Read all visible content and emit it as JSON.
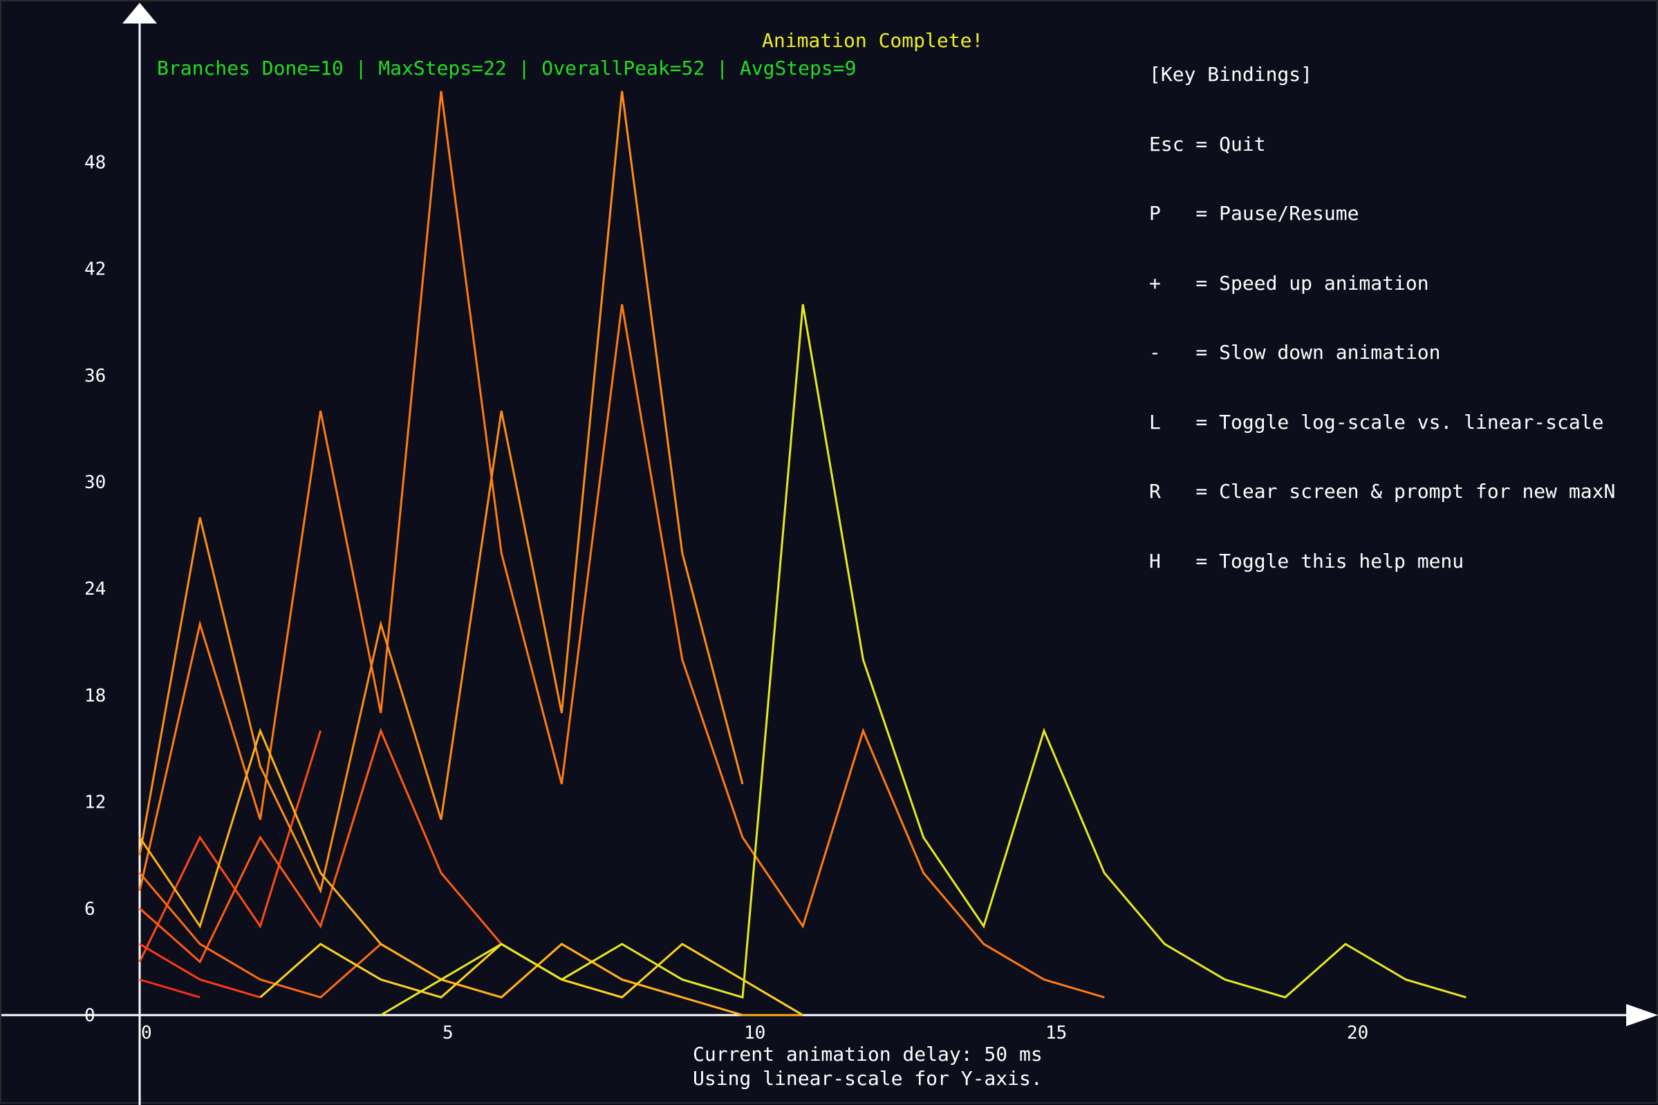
{
  "help": {
    "lines": [
      "[Key Bindings]",
      "Esc = Quit",
      "P   = Pause/Resume",
      "+   = Speed up animation",
      "-   = Slow down animation",
      "L   = Toggle log-scale vs. linear-scale",
      "R   = Clear screen & prompt for new maxN",
      "H   = Toggle this help menu"
    ]
  },
  "status": {
    "complete": "Animation Complete!",
    "summary": "Branches Done=10 | MaxSteps=22 | OverallPeak=52 | AvgSteps=9"
  },
  "footer": {
    "delay": "Current animation delay: 50 ms",
    "scale": "Using linear-scale for Y-axis."
  },
  "chart_data": {
    "type": "line",
    "xlabel": "",
    "ylabel": "",
    "xlim": [
      0,
      25
    ],
    "ylim": [
      0,
      54
    ],
    "x_ticks": [
      0,
      5,
      10,
      15,
      20
    ],
    "y_ticks": [
      0,
      6,
      12,
      18,
      24,
      30,
      36,
      42,
      48
    ],
    "grid": false,
    "series": [
      {
        "x": [
          0,
          1
        ],
        "y": [
          2,
          1
        ],
        "color": "#ff2a1a"
      },
      {
        "x": [
          0,
          1,
          2
        ],
        "y": [
          4,
          2,
          1
        ],
        "color": "#ff3a14"
      },
      {
        "x": [
          0,
          1,
          2,
          3
        ],
        "y": [
          3,
          10,
          5,
          16
        ],
        "color": "#ff4a12"
      },
      {
        "x": [
          0,
          1,
          2,
          3,
          4,
          5,
          6,
          7,
          8
        ],
        "y": [
          6,
          3,
          10,
          5,
          16,
          8,
          4,
          2,
          1
        ],
        "color": "#ff5a10"
      },
      {
        "x": [
          0,
          1,
          2,
          3,
          4,
          5,
          6,
          7,
          8,
          9
        ],
        "y": [
          8,
          4,
          2,
          1,
          4,
          2,
          1,
          4,
          2,
          1
        ],
        "color": "#ff6a10"
      },
      {
        "x": [
          0,
          1,
          2,
          3,
          4,
          5,
          6,
          7,
          8,
          9,
          10,
          11,
          12,
          13,
          14,
          15,
          16
        ],
        "y": [
          7,
          22,
          11,
          34,
          17,
          52,
          26,
          13,
          40,
          20,
          10,
          5,
          16,
          8,
          4,
          2,
          1
        ],
        "color": "#ff7a12"
      },
      {
        "x": [
          0,
          1,
          2,
          3,
          4,
          5,
          6,
          7,
          8,
          9,
          10
        ],
        "y": [
          9,
          28,
          14,
          7,
          22,
          11,
          34,
          17,
          52,
          26,
          13
        ],
        "color": "#ff8c14"
      },
      {
        "x": [
          0,
          1,
          2,
          3,
          4,
          5,
          6,
          7,
          8,
          9,
          10,
          11
        ],
        "y": [
          10,
          5,
          16,
          8,
          4,
          2,
          1,
          4,
          2,
          1,
          0,
          0
        ],
        "color": "#ffb018"
      },
      {
        "x": [
          2,
          3,
          4,
          5,
          6,
          7,
          8,
          9,
          10,
          11
        ],
        "y": [
          1,
          4,
          2,
          1,
          4,
          2,
          1,
          4,
          2,
          0
        ],
        "color": "#ffd21c"
      },
      {
        "x": [
          4,
          5,
          6,
          7,
          8,
          9,
          10,
          11,
          12,
          13,
          14,
          15,
          16,
          17,
          18,
          19,
          20,
          21,
          22
        ],
        "y": [
          0,
          2,
          4,
          2,
          4,
          2,
          1,
          40,
          20,
          10,
          5,
          16,
          8,
          4,
          2,
          1,
          4,
          2,
          1
        ],
        "color": "#e8e81e"
      }
    ]
  }
}
